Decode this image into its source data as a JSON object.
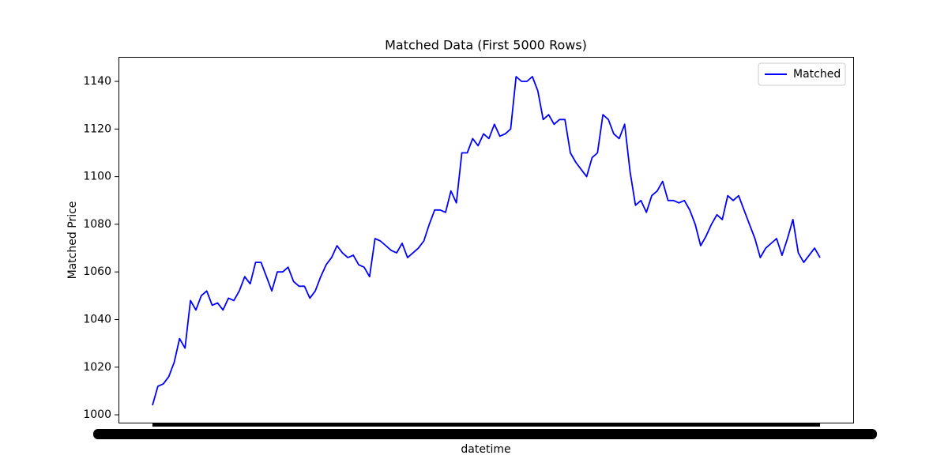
{
  "chart_data": {
    "type": "line",
    "title": "Matched Data (First 5000 Rows)",
    "x_label": "datetime",
    "y_label": "Matched Price",
    "series": [
      {
        "name": "Matched",
        "color": "#0000ff",
        "values": [
          1004,
          1012,
          1013,
          1016,
          1022,
          1032,
          1028,
          1048,
          1044,
          1050,
          1052,
          1046,
          1047,
          1044,
          1049,
          1048,
          1052,
          1058,
          1055,
          1064,
          1064,
          1058,
          1052,
          1060,
          1060,
          1062,
          1056,
          1054,
          1054,
          1049,
          1052,
          1058,
          1063,
          1066,
          1071,
          1068,
          1066,
          1067,
          1063,
          1062,
          1058,
          1074,
          1073,
          1071,
          1069,
          1068,
          1072,
          1066,
          1068,
          1070,
          1073,
          1080,
          1086,
          1086,
          1085,
          1094,
          1089,
          1110,
          1110,
          1116,
          1113,
          1118,
          1116,
          1122,
          1117,
          1118,
          1120,
          1142,
          1140,
          1140,
          1142,
          1136,
          1124,
          1126,
          1122,
          1124,
          1124,
          1110,
          1106,
          1103,
          1100,
          1108,
          1110,
          1126,
          1124,
          1118,
          1116,
          1122,
          1102,
          1088,
          1090,
          1085,
          1092,
          1094,
          1098,
          1090,
          1090,
          1089,
          1090,
          1086,
          1080,
          1071,
          1075,
          1080,
          1084,
          1082,
          1092,
          1090,
          1092,
          1086,
          1080,
          1074,
          1066,
          1070,
          1072,
          1074,
          1067,
          1074,
          1082,
          1068,
          1064,
          1067,
          1070,
          1066
        ]
      }
    ],
    "ylim": [
      996.7,
      1150.3
    ],
    "yticks": [
      1000,
      1020,
      1040,
      1060,
      1080,
      1100,
      1120,
      1140
    ],
    "legend": "upper right"
  }
}
